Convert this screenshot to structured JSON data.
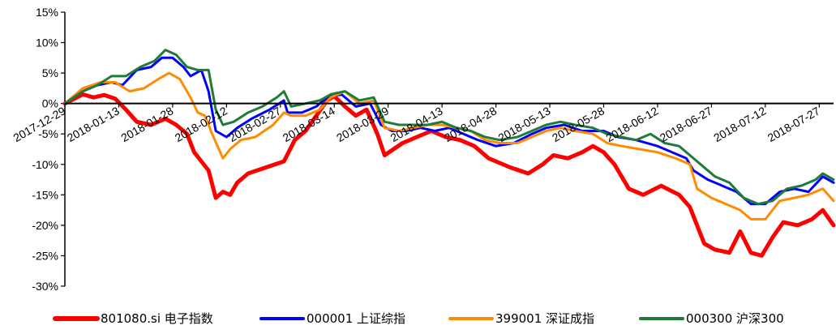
{
  "chart_data": {
    "type": "line",
    "title": "",
    "xlabel": "",
    "ylabel": "",
    "ylim": [
      -30,
      15
    ],
    "y_ticks": [
      15,
      10,
      5,
      0,
      -5,
      -10,
      -15,
      -20,
      -25,
      -30
    ],
    "y_tick_labels": [
      "15%",
      "10%",
      "5%",
      "0%",
      "-5%",
      "-10%",
      "-15%",
      "-20%",
      "-25%",
      "-30%"
    ],
    "x_tick_labels": [
      "2017-12-29",
      "2018-01-13",
      "2018-01-28",
      "2018-02-12",
      "2018-02-27",
      "2018-03-14",
      "2018-03-29",
      "2018-04-13",
      "2018-04-28",
      "2018-05-13",
      "2018-05-28",
      "2018-06-12",
      "2018-06-27",
      "2018-07-12",
      "2018-07-27"
    ],
    "x_range": [
      "2017-12-29",
      "2018-07-31"
    ],
    "grid": false,
    "legend_position": "bottom",
    "series": [
      {
        "name": "801080.si 电子指数",
        "color": "#ff0000",
        "points": [
          [
            "2017-12-29",
            0
          ],
          [
            "2018-01-03",
            1.5
          ],
          [
            "2018-01-06",
            1.0
          ],
          [
            "2018-01-09",
            1.4
          ],
          [
            "2018-01-12",
            0.8
          ],
          [
            "2018-01-15",
            -1.0
          ],
          [
            "2018-01-18",
            -3.0
          ],
          [
            "2018-01-22",
            -3.5
          ],
          [
            "2018-01-26",
            -2.5
          ],
          [
            "2018-01-29",
            -3.5
          ],
          [
            "2018-02-01",
            -5.0
          ],
          [
            "2018-02-03",
            -8.0
          ],
          [
            "2018-02-05",
            -9.5
          ],
          [
            "2018-02-07",
            -11.0
          ],
          [
            "2018-02-09",
            -15.5
          ],
          [
            "2018-02-11",
            -14.5
          ],
          [
            "2018-02-13",
            -15.0
          ],
          [
            "2018-02-15",
            -13.0
          ],
          [
            "2018-02-18",
            -11.5
          ],
          [
            "2018-02-23",
            -10.5
          ],
          [
            "2018-02-28",
            -9.5
          ],
          [
            "2018-03-03",
            -6.0
          ],
          [
            "2018-03-06",
            -4.5
          ],
          [
            "2018-03-09",
            -2.0
          ],
          [
            "2018-03-12",
            0.5
          ],
          [
            "2018-03-14",
            1.2
          ],
          [
            "2018-03-17",
            -0.5
          ],
          [
            "2018-03-20",
            -2.0
          ],
          [
            "2018-03-23",
            -1.0
          ],
          [
            "2018-03-26",
            -5.0
          ],
          [
            "2018-03-28",
            -8.5
          ],
          [
            "2018-04-02",
            -6.5
          ],
          [
            "2018-04-06",
            -5.5
          ],
          [
            "2018-04-10",
            -4.5
          ],
          [
            "2018-04-14",
            -5.5
          ],
          [
            "2018-04-18",
            -6.0
          ],
          [
            "2018-04-22",
            -7.0
          ],
          [
            "2018-04-26",
            -9.0
          ],
          [
            "2018-05-02",
            -10.5
          ],
          [
            "2018-05-07",
            -11.5
          ],
          [
            "2018-05-11",
            -10.0
          ],
          [
            "2018-05-14",
            -8.5
          ],
          [
            "2018-05-18",
            -9.0
          ],
          [
            "2018-05-22",
            -8.0
          ],
          [
            "2018-05-25",
            -7.0
          ],
          [
            "2018-05-28",
            -8.0
          ],
          [
            "2018-05-31",
            -10.0
          ],
          [
            "2018-06-04",
            -14.0
          ],
          [
            "2018-06-08",
            -15.0
          ],
          [
            "2018-06-13",
            -13.5
          ],
          [
            "2018-06-18",
            -15.0
          ],
          [
            "2018-06-21",
            -17.0
          ],
          [
            "2018-06-25",
            -23.0
          ],
          [
            "2018-06-28",
            -24.0
          ],
          [
            "2018-07-02",
            -24.5
          ],
          [
            "2018-07-05",
            -21.0
          ],
          [
            "2018-07-08",
            -24.5
          ],
          [
            "2018-07-11",
            -25.0
          ],
          [
            "2018-07-14",
            -22.0
          ],
          [
            "2018-07-17",
            -19.5
          ],
          [
            "2018-07-21",
            -20.0
          ],
          [
            "2018-07-25",
            -19.0
          ],
          [
            "2018-07-28",
            -17.5
          ],
          [
            "2018-07-31",
            -20.0
          ]
        ]
      },
      {
        "name": "000001 上证综指",
        "color": "#0000ff",
        "points": [
          [
            "2017-12-29",
            0
          ],
          [
            "2018-01-03",
            2.0
          ],
          [
            "2018-01-07",
            3.0
          ],
          [
            "2018-01-11",
            3.5
          ],
          [
            "2018-01-14",
            3.0
          ],
          [
            "2018-01-18",
            5.5
          ],
          [
            "2018-01-22",
            6.0
          ],
          [
            "2018-01-25",
            7.5
          ],
          [
            "2018-01-28",
            7.5
          ],
          [
            "2018-01-31",
            6.0
          ],
          [
            "2018-02-02",
            4.5
          ],
          [
            "2018-02-05",
            5.5
          ],
          [
            "2018-02-07",
            2.0
          ],
          [
            "2018-02-09",
            -4.5
          ],
          [
            "2018-02-12",
            -5.5
          ],
          [
            "2018-02-15",
            -4.0
          ],
          [
            "2018-02-19",
            -2.5
          ],
          [
            "2018-02-24",
            -1.0
          ],
          [
            "2018-02-28",
            0.5
          ],
          [
            "2018-03-01",
            -1.5
          ],
          [
            "2018-03-05",
            -1.5
          ],
          [
            "2018-03-09",
            -0.5
          ],
          [
            "2018-03-12",
            1.0
          ],
          [
            "2018-03-16",
            1.5
          ],
          [
            "2018-03-20",
            -0.5
          ],
          [
            "2018-03-24",
            0.0
          ],
          [
            "2018-03-27",
            -3.5
          ],
          [
            "2018-03-30",
            -4.5
          ],
          [
            "2018-04-03",
            -4.5
          ],
          [
            "2018-04-07",
            -4.0
          ],
          [
            "2018-04-11",
            -4.5
          ],
          [
            "2018-04-15",
            -4.0
          ],
          [
            "2018-04-19",
            -5.0
          ],
          [
            "2018-04-23",
            -6.0
          ],
          [
            "2018-04-28",
            -7.0
          ],
          [
            "2018-05-03",
            -6.5
          ],
          [
            "2018-05-08",
            -5.0
          ],
          [
            "2018-05-12",
            -4.0
          ],
          [
            "2018-05-17",
            -3.5
          ],
          [
            "2018-05-22",
            -4.5
          ],
          [
            "2018-05-28",
            -4.5
          ],
          [
            "2018-06-01",
            -5.5
          ],
          [
            "2018-06-06",
            -6.0
          ],
          [
            "2018-06-12",
            -7.0
          ],
          [
            "2018-06-16",
            -8.0
          ],
          [
            "2018-06-20",
            -9.0
          ],
          [
            "2018-06-22",
            -11.0
          ],
          [
            "2018-06-26",
            -12.5
          ],
          [
            "2018-06-30",
            -13.5
          ],
          [
            "2018-07-04",
            -14.5
          ],
          [
            "2018-07-08",
            -16.5
          ],
          [
            "2018-07-12",
            -16.5
          ],
          [
            "2018-07-16",
            -14.5
          ],
          [
            "2018-07-20",
            -14.0
          ],
          [
            "2018-07-24",
            -14.5
          ],
          [
            "2018-07-28",
            -12.0
          ],
          [
            "2018-07-31",
            -13.0
          ]
        ]
      },
      {
        "name": "399001 深证成指",
        "color": "#ff8c00",
        "points": [
          [
            "2017-12-29",
            0
          ],
          [
            "2018-01-03",
            2.5
          ],
          [
            "2018-01-08",
            3.5
          ],
          [
            "2018-01-12",
            3.5
          ],
          [
            "2018-01-16",
            2.0
          ],
          [
            "2018-01-20",
            2.5
          ],
          [
            "2018-01-24",
            4.0
          ],
          [
            "2018-01-27",
            5.0
          ],
          [
            "2018-01-30",
            4.0
          ],
          [
            "2018-02-02",
            1.0
          ],
          [
            "2018-02-04",
            -1.5
          ],
          [
            "2018-02-06",
            -2.0
          ],
          [
            "2018-02-08",
            -5.0
          ],
          [
            "2018-02-11",
            -9.0
          ],
          [
            "2018-02-13",
            -7.5
          ],
          [
            "2018-02-16",
            -6.0
          ],
          [
            "2018-02-20",
            -5.5
          ],
          [
            "2018-02-25",
            -3.5
          ],
          [
            "2018-02-28",
            -1.5
          ],
          [
            "2018-03-02",
            -2.0
          ],
          [
            "2018-03-06",
            -2.0
          ],
          [
            "2018-03-10",
            -1.0
          ],
          [
            "2018-03-13",
            1.0
          ],
          [
            "2018-03-17",
            2.0
          ],
          [
            "2018-03-21",
            0.0
          ],
          [
            "2018-03-25",
            0.5
          ],
          [
            "2018-03-28",
            -4.0
          ],
          [
            "2018-04-01",
            -4.5
          ],
          [
            "2018-04-05",
            -4.0
          ],
          [
            "2018-04-09",
            -3.5
          ],
          [
            "2018-04-13",
            -3.5
          ],
          [
            "2018-04-17",
            -4.0
          ],
          [
            "2018-04-21",
            -4.5
          ],
          [
            "2018-04-25",
            -6.0
          ],
          [
            "2018-04-29",
            -6.5
          ],
          [
            "2018-05-04",
            -6.5
          ],
          [
            "2018-05-08",
            -5.5
          ],
          [
            "2018-05-12",
            -4.5
          ],
          [
            "2018-05-16",
            -4.0
          ],
          [
            "2018-05-20",
            -4.5
          ],
          [
            "2018-05-25",
            -5.0
          ],
          [
            "2018-05-29",
            -6.5
          ],
          [
            "2018-06-02",
            -7.0
          ],
          [
            "2018-06-07",
            -7.5
          ],
          [
            "2018-06-12",
            -8.0
          ],
          [
            "2018-06-17",
            -9.0
          ],
          [
            "2018-06-21",
            -10.0
          ],
          [
            "2018-06-23",
            -14.0
          ],
          [
            "2018-06-27",
            -15.5
          ],
          [
            "2018-07-01",
            -16.5
          ],
          [
            "2018-07-05",
            -17.5
          ],
          [
            "2018-07-08",
            -19.0
          ],
          [
            "2018-07-12",
            -19.0
          ],
          [
            "2018-07-16",
            -16.0
          ],
          [
            "2018-07-20",
            -15.5
          ],
          [
            "2018-07-24",
            -15.0
          ],
          [
            "2018-07-28",
            -14.0
          ],
          [
            "2018-07-31",
            -16.0
          ]
        ]
      },
      {
        "name": "000300 沪深300",
        "color": "#1e7b3a",
        "points": [
          [
            "2017-12-29",
            0
          ],
          [
            "2018-01-03",
            2.0
          ],
          [
            "2018-01-07",
            3.0
          ],
          [
            "2018-01-11",
            4.5
          ],
          [
            "2018-01-15",
            4.5
          ],
          [
            "2018-01-19",
            6.0
          ],
          [
            "2018-01-23",
            7.0
          ],
          [
            "2018-01-26",
            8.8
          ],
          [
            "2018-01-29",
            8.0
          ],
          [
            "2018-02-01",
            6.0
          ],
          [
            "2018-02-04",
            5.5
          ],
          [
            "2018-02-07",
            5.5
          ],
          [
            "2018-02-09",
            -1.0
          ],
          [
            "2018-02-11",
            -3.5
          ],
          [
            "2018-02-14",
            -3.0
          ],
          [
            "2018-02-18",
            -1.5
          ],
          [
            "2018-02-22",
            -0.5
          ],
          [
            "2018-02-26",
            1.0
          ],
          [
            "2018-02-28",
            2.0
          ],
          [
            "2018-03-02",
            -0.5
          ],
          [
            "2018-03-06",
            0.0
          ],
          [
            "2018-03-10",
            0.5
          ],
          [
            "2018-03-13",
            1.5
          ],
          [
            "2018-03-17",
            2.0
          ],
          [
            "2018-03-21",
            0.5
          ],
          [
            "2018-03-25",
            1.0
          ],
          [
            "2018-03-28",
            -3.0
          ],
          [
            "2018-04-01",
            -3.5
          ],
          [
            "2018-04-05",
            -3.5
          ],
          [
            "2018-04-09",
            -3.5
          ],
          [
            "2018-04-13",
            -3.0
          ],
          [
            "2018-04-17",
            -4.0
          ],
          [
            "2018-04-21",
            -4.5
          ],
          [
            "2018-04-25",
            -5.5
          ],
          [
            "2018-04-29",
            -6.0
          ],
          [
            "2018-05-04",
            -5.5
          ],
          [
            "2018-05-08",
            -4.5
          ],
          [
            "2018-05-12",
            -3.5
          ],
          [
            "2018-05-16",
            -3.0
          ],
          [
            "2018-05-20",
            -3.5
          ],
          [
            "2018-05-25",
            -4.0
          ],
          [
            "2018-05-29",
            -5.0
          ],
          [
            "2018-06-02",
            -5.5
          ],
          [
            "2018-06-06",
            -6.0
          ],
          [
            "2018-06-10",
            -5.0
          ],
          [
            "2018-06-14",
            -6.5
          ],
          [
            "2018-06-18",
            -7.0
          ],
          [
            "2018-06-21",
            -8.5
          ],
          [
            "2018-06-24",
            -10.0
          ],
          [
            "2018-06-28",
            -12.0
          ],
          [
            "2018-07-02",
            -13.0
          ],
          [
            "2018-07-06",
            -15.5
          ],
          [
            "2018-07-10",
            -16.5
          ],
          [
            "2018-07-14",
            -16.0
          ],
          [
            "2018-07-18",
            -14.0
          ],
          [
            "2018-07-22",
            -13.5
          ],
          [
            "2018-07-26",
            -12.5
          ],
          [
            "2018-07-28",
            -11.5
          ],
          [
            "2018-07-31",
            -12.5
          ]
        ]
      }
    ]
  }
}
